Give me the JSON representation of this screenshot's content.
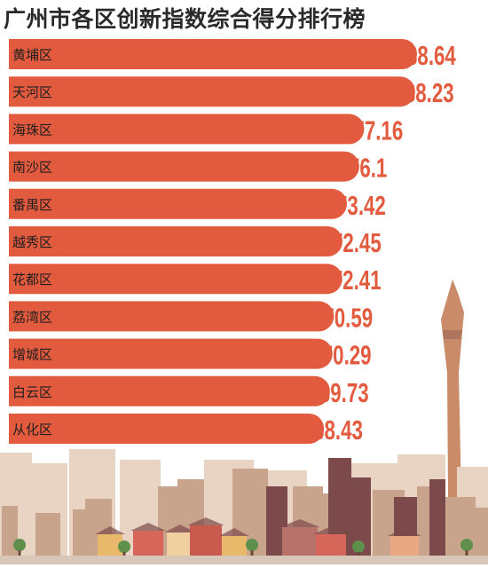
{
  "title": "广州市各区创新指数综合得分排行榜",
  "colors": {
    "bar": "#e35b3e",
    "label": "#1e1e1e",
    "value": "#e35b3e",
    "skyline_light": "#e9d4c4",
    "skyline_mid": "#c9a48c",
    "skyline_dark": "#7c4a4a",
    "tower": "#c98b68"
  },
  "chart_data": {
    "type": "bar",
    "orientation": "horizontal",
    "categories": [
      "黄埔区",
      "天河区",
      "海珠区",
      "南沙区",
      "番禺区",
      "越秀区",
      "花都区",
      "荔湾区",
      "增城区",
      "白云区",
      "从化区"
    ],
    "values": [
      88.64,
      88.23,
      77.16,
      76.1,
      73.42,
      72.45,
      72.41,
      70.59,
      70.29,
      69.73,
      68.43
    ],
    "value_labels": [
      "88.64",
      "88.23",
      "77.16",
      "76.1",
      "73.42",
      "72.45",
      "72.41",
      "70.59",
      "70.29",
      "69.73",
      "68.43"
    ],
    "title": "广州市各区创新指数综合得分排行榜",
    "xlabel": "",
    "ylabel": "",
    "grid": false,
    "legend": "none"
  }
}
